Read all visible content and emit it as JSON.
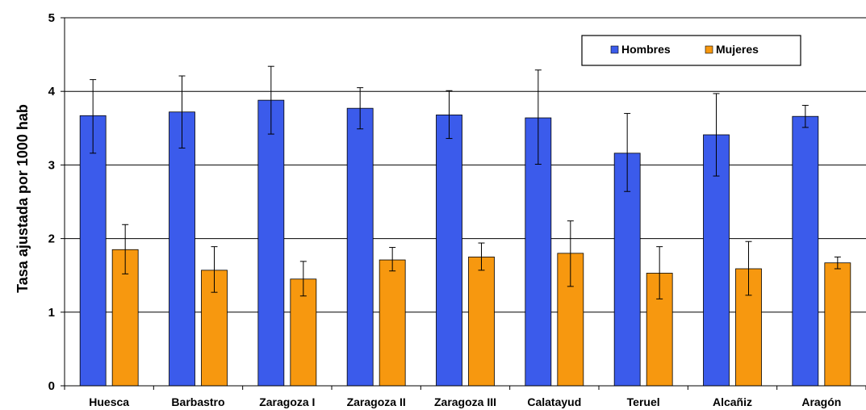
{
  "chart_data": {
    "type": "bar",
    "title": "",
    "xlabel": "",
    "ylabel": "Tasa ajustada por 1000 hab",
    "ylim": [
      0,
      5
    ],
    "yticks": [
      0,
      1,
      2,
      3,
      4,
      5
    ],
    "grid": true,
    "legend_position": "top-right",
    "categories": [
      "Huesca",
      "Barbastro",
      "Zaragoza I",
      "Zaragoza II",
      "Zaragoza III",
      "Calatayud",
      "Teruel",
      "Alcañiz",
      "Aragón"
    ],
    "series": [
      {
        "name": "Hombres",
        "color": "#3B5BEB",
        "values": [
          3.67,
          3.72,
          3.88,
          3.77,
          3.68,
          3.64,
          3.16,
          3.41,
          3.66
        ],
        "error_low": [
          3.16,
          3.23,
          3.42,
          3.49,
          3.36,
          3.01,
          2.64,
          2.85,
          3.51
        ],
        "error_high": [
          4.16,
          4.21,
          4.34,
          4.05,
          4.01,
          4.29,
          3.7,
          3.97,
          3.81
        ]
      },
      {
        "name": "Mujeres",
        "color": "#F7980F",
        "values": [
          1.85,
          1.57,
          1.45,
          1.71,
          1.75,
          1.8,
          1.53,
          1.59,
          1.67
        ],
        "error_low": [
          1.52,
          1.27,
          1.22,
          1.56,
          1.57,
          1.35,
          1.18,
          1.23,
          1.59
        ],
        "error_high": [
          2.19,
          1.89,
          1.69,
          1.88,
          1.94,
          2.24,
          1.89,
          1.96,
          1.75
        ]
      }
    ]
  }
}
